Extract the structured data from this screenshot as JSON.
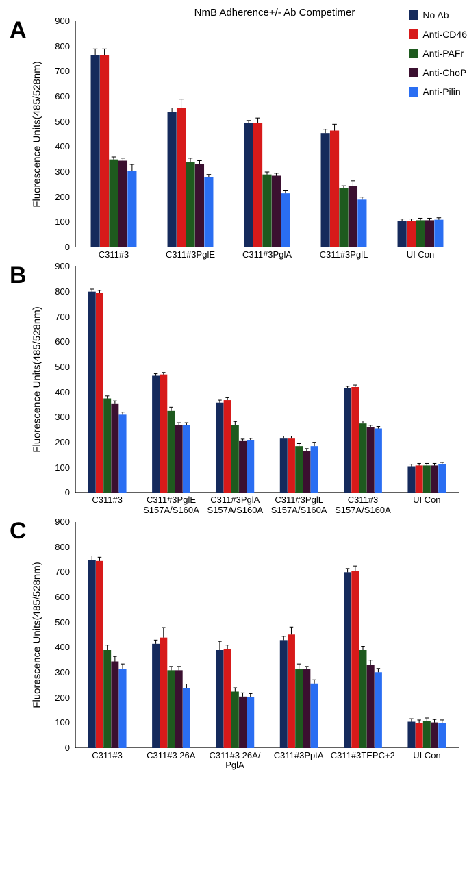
{
  "title": "NmB Adherence+/- Ab Competimer",
  "y_axis_label": "Fluorescence Units(485/528nm)",
  "colors": {
    "NoAb": "#152a5c",
    "AntiCD46": "#d71a1a",
    "AntiPAFr": "#1e5a1e",
    "AntiChoP": "#3b1030",
    "AntiPilin": "#2a6ef2",
    "axis": "#000000",
    "background": "#ffffff"
  },
  "legend": [
    {
      "key": "NoAb",
      "label": "No Ab"
    },
    {
      "key": "AntiCD46",
      "label": "Anti-CD46"
    },
    {
      "key": "AntiPAFr",
      "label": "Anti-PAFr"
    },
    {
      "key": "AntiChoP",
      "label": "Anti-ChoP"
    },
    {
      "key": "AntiPilin",
      "label": "Anti-Pilin"
    }
  ],
  "y_axis": {
    "min": 0,
    "max": 900,
    "tick_step": 100,
    "tick_fontsize": 13
  },
  "panels": [
    {
      "id": "A",
      "groups": [
        {
          "label": "C311#3",
          "bars": [
            {
              "key": "NoAb",
              "v": 765,
              "e": 25
            },
            {
              "key": "AntiCD46",
              "v": 765,
              "e": 25
            },
            {
              "key": "AntiPAFr",
              "v": 350,
              "e": 10
            },
            {
              "key": "AntiChoP",
              "v": 345,
              "e": 10
            },
            {
              "key": "AntiPilin",
              "v": 305,
              "e": 25
            }
          ]
        },
        {
          "label": "C311#3PglE",
          "bars": [
            {
              "key": "NoAb",
              "v": 540,
              "e": 15
            },
            {
              "key": "AntiCD46",
              "v": 555,
              "e": 35
            },
            {
              "key": "AntiPAFr",
              "v": 340,
              "e": 15
            },
            {
              "key": "AntiChoP",
              "v": 330,
              "e": 15
            },
            {
              "key": "AntiPilin",
              "v": 280,
              "e": 10
            }
          ]
        },
        {
          "label": "C311#3PglA",
          "bars": [
            {
              "key": "NoAb",
              "v": 495,
              "e": 10
            },
            {
              "key": "AntiCD46",
              "v": 495,
              "e": 20
            },
            {
              "key": "AntiPAFr",
              "v": 290,
              "e": 10
            },
            {
              "key": "AntiChoP",
              "v": 285,
              "e": 10
            },
            {
              "key": "AntiPilin",
              "v": 215,
              "e": 10
            }
          ]
        },
        {
          "label": "C311#3PglL",
          "bars": [
            {
              "key": "NoAb",
              "v": 455,
              "e": 15
            },
            {
              "key": "AntiCD46",
              "v": 465,
              "e": 25
            },
            {
              "key": "AntiPAFr",
              "v": 235,
              "e": 10
            },
            {
              "key": "AntiChoP",
              "v": 245,
              "e": 20
            },
            {
              "key": "AntiPilin",
              "v": 190,
              "e": 10
            }
          ]
        },
        {
          "label": "UI Con",
          "bars": [
            {
              "key": "NoAb",
              "v": 105,
              "e": 8
            },
            {
              "key": "AntiCD46",
              "v": 105,
              "e": 8
            },
            {
              "key": "AntiPAFr",
              "v": 108,
              "e": 8
            },
            {
              "key": "AntiChoP",
              "v": 108,
              "e": 8
            },
            {
              "key": "AntiPilin",
              "v": 110,
              "e": 8
            }
          ]
        }
      ]
    },
    {
      "id": "B",
      "groups": [
        {
          "label": "C311#3",
          "bars": [
            {
              "key": "NoAb",
              "v": 800,
              "e": 10
            },
            {
              "key": "AntiCD46",
              "v": 795,
              "e": 10
            },
            {
              "key": "AntiPAFr",
              "v": 375,
              "e": 10
            },
            {
              "key": "AntiChoP",
              "v": 355,
              "e": 10
            },
            {
              "key": "AntiPilin",
              "v": 310,
              "e": 10
            }
          ]
        },
        {
          "label": "C311#3PglE\nS157A/S160A",
          "bars": [
            {
              "key": "NoAb",
              "v": 465,
              "e": 8
            },
            {
              "key": "AntiCD46",
              "v": 470,
              "e": 8
            },
            {
              "key": "AntiPAFr",
              "v": 325,
              "e": 15
            },
            {
              "key": "AntiChoP",
              "v": 270,
              "e": 8
            },
            {
              "key": "AntiPilin",
              "v": 270,
              "e": 8
            }
          ]
        },
        {
          "label": "C311#3PglA\nS157A/S160A",
          "bars": [
            {
              "key": "NoAb",
              "v": 358,
              "e": 10
            },
            {
              "key": "AntiCD46",
              "v": 368,
              "e": 10
            },
            {
              "key": "AntiPAFr",
              "v": 268,
              "e": 15
            },
            {
              "key": "AntiChoP",
              "v": 205,
              "e": 8
            },
            {
              "key": "AntiPilin",
              "v": 208,
              "e": 8
            }
          ]
        },
        {
          "label": "C311#3PglL\nS157A/S160A",
          "bars": [
            {
              "key": "NoAb",
              "v": 215,
              "e": 10
            },
            {
              "key": "AntiCD46",
              "v": 215,
              "e": 10
            },
            {
              "key": "AntiPAFr",
              "v": 185,
              "e": 10
            },
            {
              "key": "AntiChoP",
              "v": 165,
              "e": 10
            },
            {
              "key": "AntiPilin",
              "v": 185,
              "e": 15
            }
          ]
        },
        {
          "label": "C311#3\nS157A/S160A",
          "bars": [
            {
              "key": "NoAb",
              "v": 415,
              "e": 8
            },
            {
              "key": "AntiCD46",
              "v": 420,
              "e": 8
            },
            {
              "key": "AntiPAFr",
              "v": 275,
              "e": 10
            },
            {
              "key": "AntiChoP",
              "v": 260,
              "e": 8
            },
            {
              "key": "AntiPilin",
              "v": 255,
              "e": 8
            }
          ]
        },
        {
          "label": "UI Con",
          "bars": [
            {
              "key": "NoAb",
              "v": 105,
              "e": 8
            },
            {
              "key": "AntiCD46",
              "v": 108,
              "e": 8
            },
            {
              "key": "AntiPAFr",
              "v": 108,
              "e": 8
            },
            {
              "key": "AntiChoP",
              "v": 108,
              "e": 8
            },
            {
              "key": "AntiPilin",
              "v": 112,
              "e": 8
            }
          ]
        }
      ]
    },
    {
      "id": "C",
      "groups": [
        {
          "label": "C311#3",
          "bars": [
            {
              "key": "NoAb",
              "v": 750,
              "e": 15
            },
            {
              "key": "AntiCD46",
              "v": 745,
              "e": 15
            },
            {
              "key": "AntiPAFr",
              "v": 390,
              "e": 20
            },
            {
              "key": "AntiChoP",
              "v": 345,
              "e": 20
            },
            {
              "key": "AntiPilin",
              "v": 315,
              "e": 20
            }
          ]
        },
        {
          "label": "C311#3 26A",
          "bars": [
            {
              "key": "NoAb",
              "v": 415,
              "e": 15
            },
            {
              "key": "AntiCD46",
              "v": 440,
              "e": 40
            },
            {
              "key": "AntiPAFr",
              "v": 310,
              "e": 15
            },
            {
              "key": "AntiChoP",
              "v": 310,
              "e": 15
            },
            {
              "key": "AntiPilin",
              "v": 240,
              "e": 15
            }
          ]
        },
        {
          "label": "C311#3 26A/\nPglA",
          "bars": [
            {
              "key": "NoAb",
              "v": 390,
              "e": 35
            },
            {
              "key": "AntiCD46",
              "v": 395,
              "e": 15
            },
            {
              "key": "AntiPAFr",
              "v": 225,
              "e": 15
            },
            {
              "key": "AntiChoP",
              "v": 205,
              "e": 15
            },
            {
              "key": "AntiPilin",
              "v": 202,
              "e": 15
            }
          ]
        },
        {
          "label": "C311#3PptA",
          "bars": [
            {
              "key": "NoAb",
              "v": 430,
              "e": 15
            },
            {
              "key": "AntiCD46",
              "v": 452,
              "e": 30
            },
            {
              "key": "AntiPAFr",
              "v": 315,
              "e": 20
            },
            {
              "key": "AntiChoP",
              "v": 315,
              "e": 10
            },
            {
              "key": "AntiPilin",
              "v": 257,
              "e": 15
            }
          ]
        },
        {
          "label": "C311#3TEPC+2",
          "bars": [
            {
              "key": "NoAb",
              "v": 700,
              "e": 15
            },
            {
              "key": "AntiCD46",
              "v": 705,
              "e": 20
            },
            {
              "key": "AntiPAFr",
              "v": 390,
              "e": 15
            },
            {
              "key": "AntiChoP",
              "v": 330,
              "e": 20
            },
            {
              "key": "AntiPilin",
              "v": 302,
              "e": 15
            }
          ]
        },
        {
          "label": "UI Con",
          "bars": [
            {
              "key": "NoAb",
              "v": 105,
              "e": 12
            },
            {
              "key": "AntiCD46",
              "v": 100,
              "e": 12
            },
            {
              "key": "AntiPAFr",
              "v": 108,
              "e": 12
            },
            {
              "key": "AntiChoP",
              "v": 102,
              "e": 12
            },
            {
              "key": "AntiPilin",
              "v": 100,
              "e": 12
            }
          ]
        }
      ]
    }
  ]
}
